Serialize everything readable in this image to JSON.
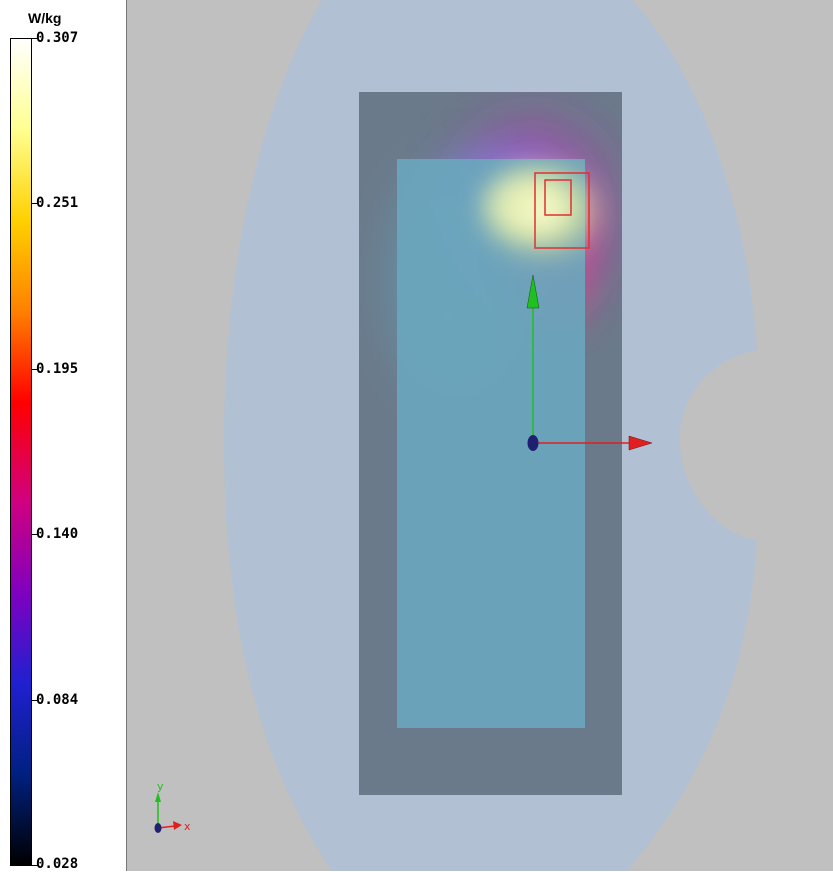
{
  "legend": {
    "unit": "W/kg",
    "ticks": [
      "0.307",
      "0.251",
      "0.195",
      "0.140",
      "0.084",
      "0.028"
    ],
    "gradient_colors": [
      "#ffffff",
      "#ffff90",
      "#ffd000",
      "#ff8000",
      "#ff0000",
      "#d00080",
      "#8000c0",
      "#2020d0",
      "#002080",
      "#000000"
    ]
  },
  "axes": {
    "x_label": "x",
    "y_label": "y"
  },
  "colors": {
    "background": "#c0c0c0",
    "phantom": "#b1c0d3",
    "phone_outer": "#6b7a8a",
    "phone_inner": "#6aa6bd",
    "arrow_x": "#e02020",
    "arrow_y": "#20c020",
    "measurement_box": "#e03030"
  },
  "icons": [
    "coordinate-axes-icon"
  ]
}
